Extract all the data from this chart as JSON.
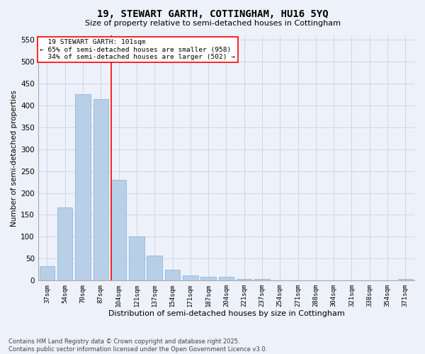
{
  "title": "19, STEWART GARTH, COTTINGHAM, HU16 5YQ",
  "subtitle": "Size of property relative to semi-detached houses in Cottingham",
  "xlabel": "Distribution of semi-detached houses by size in Cottingham",
  "ylabel": "Number of semi-detached properties",
  "categories": [
    "37sqm",
    "54sqm",
    "70sqm",
    "87sqm",
    "104sqm",
    "121sqm",
    "137sqm",
    "154sqm",
    "171sqm",
    "187sqm",
    "204sqm",
    "221sqm",
    "237sqm",
    "254sqm",
    "271sqm",
    "288sqm",
    "304sqm",
    "321sqm",
    "338sqm",
    "354sqm",
    "371sqm"
  ],
  "values": [
    33,
    167,
    425,
    415,
    230,
    101,
    57,
    25,
    11,
    8,
    9,
    4,
    3,
    1,
    0,
    0,
    1,
    0,
    0,
    0,
    3
  ],
  "bar_color": "#b8cfe8",
  "bar_edge_color": "#8aafd0",
  "redline_index": 4,
  "redline_label": "19 STEWART GARTH: 101sqm",
  "pct_smaller": "65% of semi-detached houses are smaller (958)",
  "pct_larger": "34% of semi-detached houses are larger (502)",
  "ylim": [
    0,
    560
  ],
  "yticks": [
    0,
    50,
    100,
    150,
    200,
    250,
    300,
    350,
    400,
    450,
    500,
    550
  ],
  "footer_line1": "Contains HM Land Registry data © Crown copyright and database right 2025.",
  "footer_line2": "Contains public sector information licensed under the Open Government Licence v3.0.",
  "bg_color": "#edf1f9",
  "grid_color": "#ccd6e8"
}
